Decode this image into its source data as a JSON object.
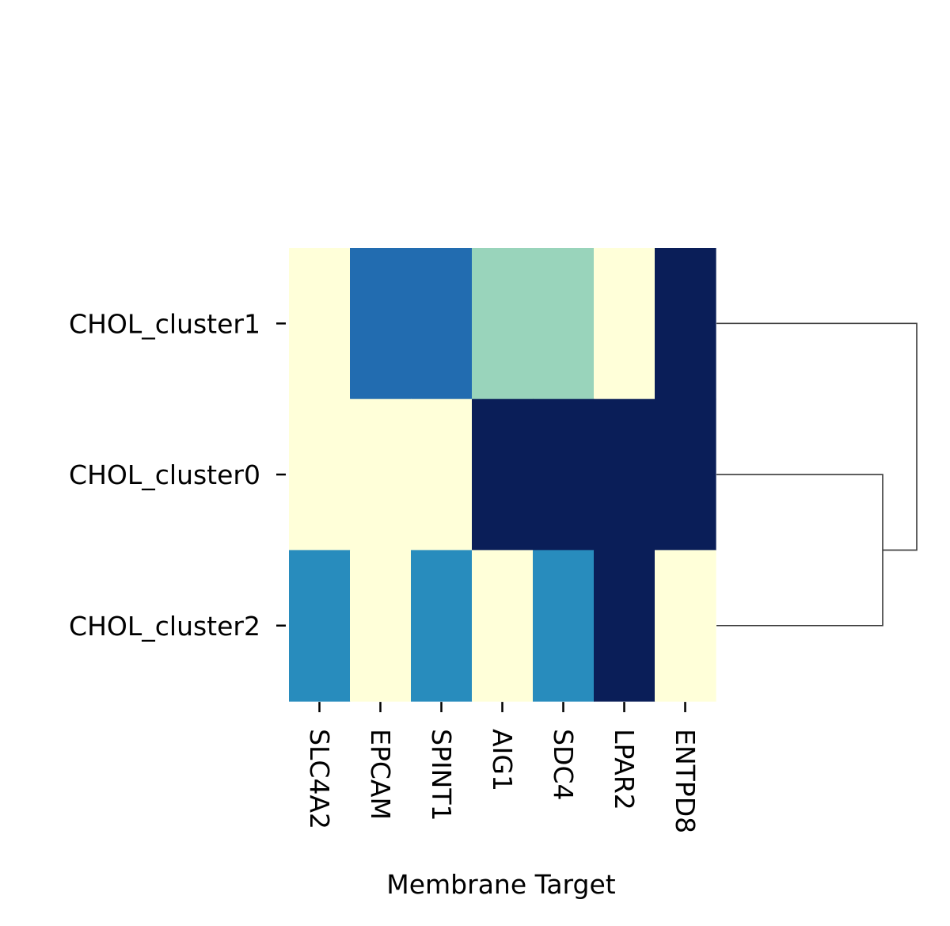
{
  "chart_data": {
    "type": "heatmap",
    "title": "",
    "xlabel": "Membrane Target",
    "ylabel": "",
    "columns": [
      "SLC4A2",
      "EPCAM",
      "SPINT1",
      "AIG1",
      "SDC4",
      "LPAR2",
      "ENTPD8"
    ],
    "rows": [
      "CHOL_cluster1",
      "CHOL_cluster0",
      "CHOL_cluster2"
    ],
    "values": [
      [
        0.0,
        0.75,
        0.75,
        0.3,
        0.3,
        0.0,
        1.0
      ],
      [
        0.0,
        0.0,
        0.0,
        1.0,
        1.0,
        1.0,
        1.0
      ],
      [
        0.6,
        0.0,
        0.6,
        0.0,
        0.6,
        1.0,
        0.0
      ]
    ],
    "colormap": "YlGnBu",
    "color_stops": [
      "#ffffd9",
      "#b4e1b8",
      "#2ca1c5",
      "#226cb0",
      "#0a1e58"
    ],
    "row_dendrogram": {
      "side": "right",
      "merges": [
        {
          "left": "CHOL_cluster0",
          "right": "CHOL_cluster2",
          "height": 0.83
        },
        {
          "left": "CHOL_cluster1",
          "right": "cluster0+cluster2",
          "height": 1.0
        }
      ]
    },
    "colorbar": false,
    "grid": false
  }
}
